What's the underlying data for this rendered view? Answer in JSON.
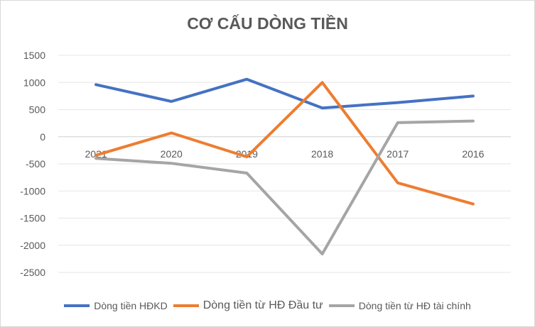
{
  "chart_data": {
    "type": "line",
    "title": "CƠ CẤU DÒNG TIỀN",
    "categories": [
      "2021",
      "2020",
      "2019",
      "2018",
      "2017",
      "2016"
    ],
    "ylim": [
      -2500,
      1500
    ],
    "yticks": [
      1500,
      1000,
      500,
      0,
      -500,
      -1000,
      -1500,
      -2000,
      -2500
    ],
    "grid": true,
    "legend_position": "bottom",
    "series": [
      {
        "name": "Dòng tiền HĐKD",
        "color": "#4472c4",
        "values": [
          960,
          650,
          1060,
          530,
          630,
          750
        ]
      },
      {
        "name": "Dòng tiền từ HĐ Đầu tư",
        "color": "#ed7d31",
        "values": [
          -340,
          70,
          -370,
          1000,
          -850,
          -1240
        ]
      },
      {
        "name": "Dòng tiền từ HĐ tài chính",
        "color": "#a5a5a5",
        "values": [
          -400,
          -490,
          -670,
          -2160,
          260,
          290
        ]
      }
    ]
  }
}
